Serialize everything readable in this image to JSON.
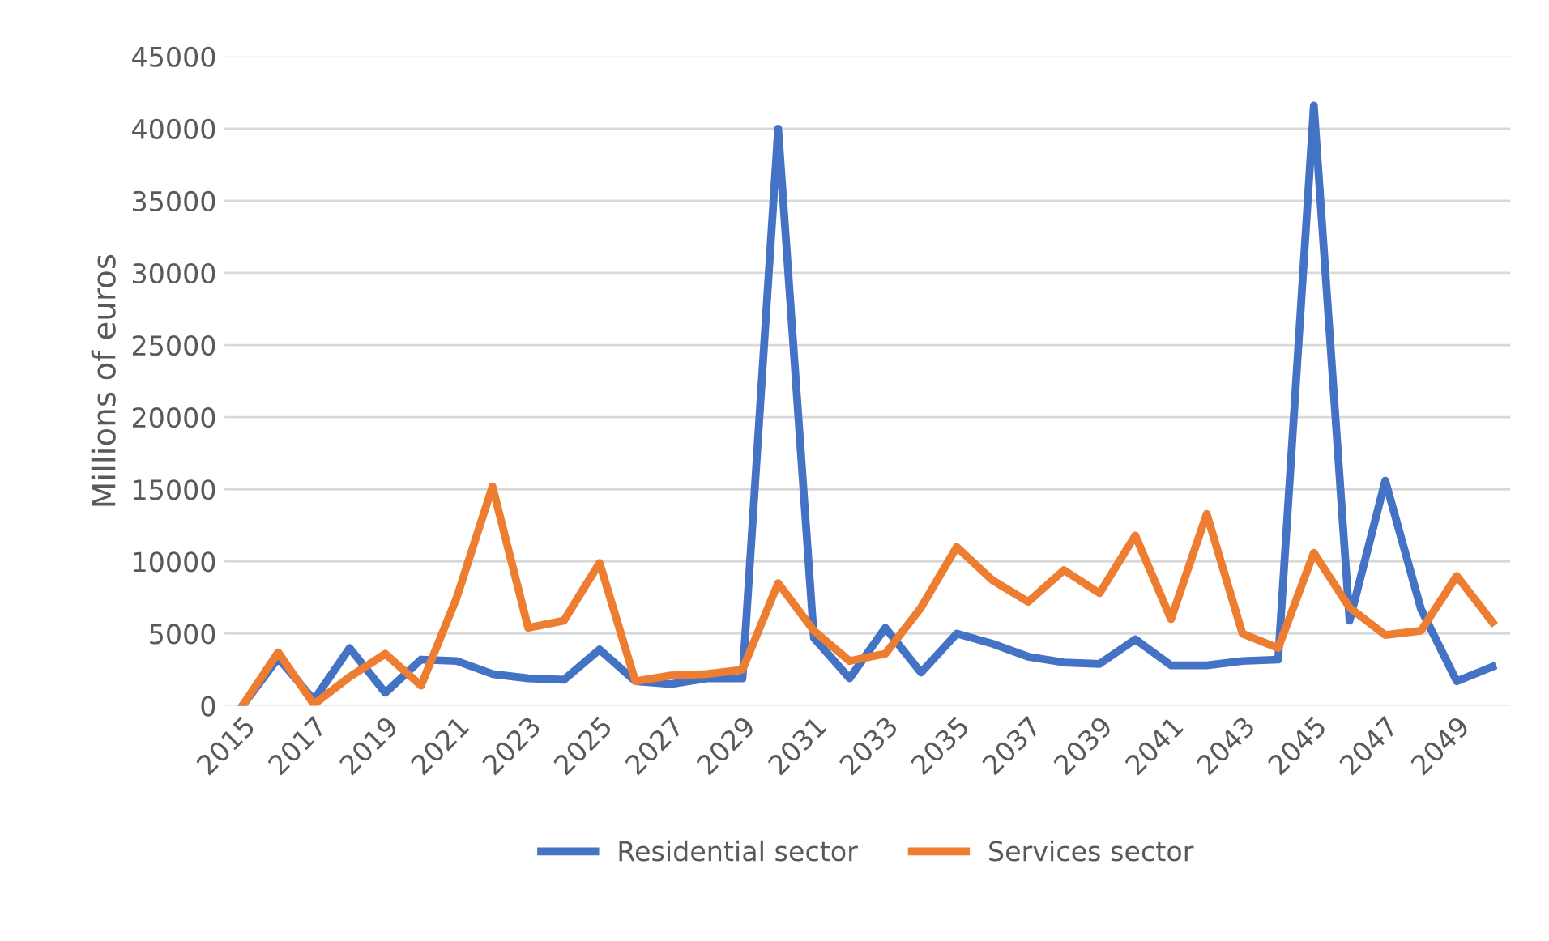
{
  "chart_data": {
    "type": "line",
    "ylabel": "Millions of euros",
    "categories": [
      "2015",
      null,
      "2017",
      null,
      "2019",
      null,
      "2021",
      null,
      "2023",
      null,
      "2025",
      null,
      "2027",
      null,
      "2029",
      null,
      "2031",
      null,
      "2033",
      null,
      "2035",
      null,
      "2037",
      null,
      "2039",
      null,
      "2041",
      null,
      "2043",
      null,
      "2045",
      null,
      "2047",
      null,
      "2049",
      null
    ],
    "series": [
      {
        "name": "Residential sector",
        "color": "#4472c4",
        "values": [
          0,
          3300,
          400,
          4000,
          900,
          3200,
          3100,
          2200,
          1900,
          1800,
          3900,
          1700,
          1500,
          1900,
          1900,
          40000,
          4700,
          1900,
          5400,
          2300,
          5000,
          4300,
          3400,
          3000,
          2900,
          4600,
          2800,
          2800,
          3100,
          3200,
          41600,
          5900,
          15600,
          6700,
          1700,
          2700
        ]
      },
      {
        "name": "Services sector",
        "color": "#ed7d31",
        "values": [
          0,
          3700,
          100,
          2000,
          3600,
          1400,
          7500,
          15200,
          5400,
          5900,
          9900,
          1700,
          2100,
          2200,
          2500,
          8500,
          5200,
          3100,
          3600,
          6800,
          11000,
          8700,
          7200,
          9400,
          7800,
          11800,
          6000,
          13300,
          5000,
          4000,
          10600,
          6800,
          4900,
          5200,
          9000,
          5800
        ]
      }
    ],
    "ylim": [
      0,
      45000
    ],
    "yticks": [
      0,
      5000,
      10000,
      15000,
      20000,
      25000,
      30000,
      35000,
      40000,
      45000
    ],
    "grid": "y",
    "legend": "bottom",
    "marker": "none",
    "line_style": "solid"
  }
}
